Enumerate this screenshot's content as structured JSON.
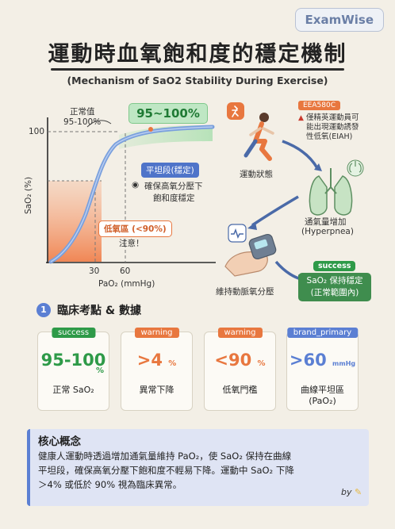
{
  "brand": "ExamWise",
  "title": "運動時血氧飽和度的穩定機制",
  "subtitle": "(Mechanism of SaO2 Stability During Exercise)",
  "curve": {
    "y_axis_label": "SaO₂ (%)",
    "x_axis_label": "PaO₂ (mmHg)",
    "y_tick_100": "100",
    "x_tick_30": "30",
    "x_tick_60": "60",
    "normal_note_line1": "正常值",
    "normal_note_line2": "95-100%",
    "normal_range_pill": "95~100%",
    "plateau_pill": "平坦段(穩定)",
    "plateau_note_line1": "確保高氧分壓下",
    "plateau_note_line2": "飽和度穩定",
    "hypoxia_pill": "低氧區 (<90%)",
    "hypoxia_note": "注意！",
    "colors": {
      "curve": "#7aa0dd",
      "hypoxia_fill": "#f07b45",
      "plateau_glow": "#a8dfae"
    }
  },
  "flow": {
    "runner_label": "運動狀態",
    "eeg_badge": "EEA580C",
    "warning_line1": "僅精英運動員可",
    "warning_line2": "能出現運動誘發",
    "warning_line3": "性低氧(EIAH)",
    "lungs_label_line1": "通氣量增加",
    "lungs_label_line2": "(Hyperpnea)",
    "oximeter_label": "維持動脈氧分壓",
    "success_badge": "success",
    "result_line1": "SaO₂ 保持穩定",
    "result_line2": "(正常範圍內)",
    "icons": [
      "running-icon",
      "lungs-icon",
      "heartbeat-icon",
      "pulse-oximeter-icon"
    ]
  },
  "section": {
    "number": "1",
    "title": "臨床考點 & 數據"
  },
  "cards": [
    {
      "tag": "success",
      "value": "95-100",
      "unit": "%",
      "caption_line1": "正常 SaO₂",
      "caption_line2": "",
      "color": "#2e9a48"
    },
    {
      "tag": "warning",
      "value": ">4",
      "unit": "%",
      "caption_line1": "異常下降",
      "caption_line2": "",
      "color": "#e8773f"
    },
    {
      "tag": "warning",
      "value": "<90",
      "unit": "%",
      "caption_line1": "低氧門檻",
      "caption_line2": "",
      "color": "#e8773f"
    },
    {
      "tag": "brand_primary",
      "value": ">60",
      "unit": "mmHg",
      "caption_line1": "曲線平坦區",
      "caption_line2": "(PaO₂)",
      "color": "#5b7fd3"
    }
  ],
  "concept": {
    "title": "核心概念",
    "line1": "健康人運動時透過增加通氣量維持 PaO₂，使 SaO₂ 保持在曲線",
    "line2": "平坦段，確保高氧分壓下飽和度不輕易下降。運動中 SaO₂ 下降",
    "line3": "＞4% 或低於 90% 視為臨床異常。",
    "byline": "by"
  }
}
